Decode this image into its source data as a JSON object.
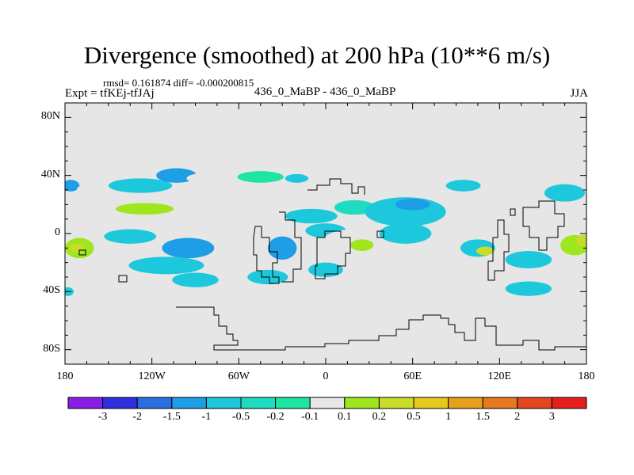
{
  "header": {
    "title": "Divergence (smoothed) at 200 hPa (10**6 m/s)",
    "stats": "rmsd= 0.161874  diff= -0.000200815",
    "experiment": "Expt = tfKEj-tfJAj",
    "case": "436_0_MaBP - 436_0_MaBP",
    "season": "JJA"
  },
  "map": {
    "lat_range": [
      -90,
      90
    ],
    "lon_range": [
      -180,
      180
    ],
    "y_ticks": [
      {
        "value": 80,
        "label": "80N"
      },
      {
        "value": 40,
        "label": "40N"
      },
      {
        "value": 0,
        "label": "0"
      },
      {
        "value": -40,
        "label": "40S"
      },
      {
        "value": -80,
        "label": "80S"
      }
    ],
    "x_ticks": [
      {
        "value": -180,
        "label": "180"
      },
      {
        "value": -120,
        "label": "120W"
      },
      {
        "value": -60,
        "label": "60W"
      },
      {
        "value": 0,
        "label": "0"
      },
      {
        "value": 60,
        "label": "60E"
      },
      {
        "value": 120,
        "label": "120E"
      },
      {
        "value": 180,
        "label": "180"
      }
    ],
    "background_color": "#e6e6e6",
    "blobs": [
      {
        "lon": -176,
        "lat": 33,
        "rx": 6,
        "ry": 4,
        "level": 3
      },
      {
        "lon": -158,
        "lat": 30,
        "rx": 14,
        "ry": 5,
        "level": 7
      },
      {
        "lon": -128,
        "lat": 33,
        "rx": 22,
        "ry": 5,
        "level": 4
      },
      {
        "lon": -103,
        "lat": 40,
        "rx": 14,
        "ry": 5,
        "level": 3
      },
      {
        "lon": -80,
        "lat": 38,
        "rx": 16,
        "ry": 4,
        "level": 7
      },
      {
        "lon": -45,
        "lat": 39,
        "rx": 16,
        "ry": 4,
        "level": 6
      },
      {
        "lon": -20,
        "lat": 38,
        "rx": 8,
        "ry": 3,
        "level": 4
      },
      {
        "lon": -165,
        "lat": 18,
        "rx": 14,
        "ry": 5,
        "level": 7
      },
      {
        "lon": -125,
        "lat": 17,
        "rx": 20,
        "ry": 4,
        "level": 8
      },
      {
        "lon": -85,
        "lat": 20,
        "rx": 16,
        "ry": 5,
        "level": 7
      },
      {
        "lon": -45,
        "lat": 14,
        "rx": 10,
        "ry": 4,
        "level": 7
      },
      {
        "lon": -10,
        "lat": 12,
        "rx": 18,
        "ry": 5,
        "level": 4
      },
      {
        "lon": 20,
        "lat": 18,
        "rx": 14,
        "ry": 5,
        "level": 5
      },
      {
        "lon": 55,
        "lat": 15,
        "rx": 28,
        "ry": 10,
        "level": 4
      },
      {
        "lon": 60,
        "lat": 20,
        "rx": 12,
        "ry": 4,
        "level": 3
      },
      {
        "lon": 92,
        "lat": 22,
        "rx": 10,
        "ry": 4,
        "level": 7
      },
      {
        "lon": 95,
        "lat": 33,
        "rx": 12,
        "ry": 4,
        "level": 4
      },
      {
        "lon": 150,
        "lat": 25,
        "rx": 12,
        "ry": 5,
        "level": 7
      },
      {
        "lon": 165,
        "lat": 28,
        "rx": 14,
        "ry": 6,
        "level": 4
      },
      {
        "lon": 176,
        "lat": 18,
        "rx": 6,
        "ry": 5,
        "level": 7
      },
      {
        "lon": -170,
        "lat": -10,
        "rx": 10,
        "ry": 7,
        "level": 8
      },
      {
        "lon": -172,
        "lat": -10,
        "rx": 5,
        "ry": 3,
        "level": 9
      },
      {
        "lon": -135,
        "lat": -2,
        "rx": 18,
        "ry": 5,
        "level": 4
      },
      {
        "lon": -140,
        "lat": -12,
        "rx": 16,
        "ry": 5,
        "level": 7
      },
      {
        "lon": -95,
        "lat": -10,
        "rx": 18,
        "ry": 7,
        "level": 3
      },
      {
        "lon": -110,
        "lat": -22,
        "rx": 26,
        "ry": 6,
        "level": 4
      },
      {
        "lon": -60,
        "lat": 0,
        "rx": 12,
        "ry": 5,
        "level": 7
      },
      {
        "lon": -30,
        "lat": -10,
        "rx": 10,
        "ry": 8,
        "level": 3
      },
      {
        "lon": 0,
        "lat": 2,
        "rx": 14,
        "ry": 5,
        "level": 4
      },
      {
        "lon": 20,
        "lat": -5,
        "rx": 22,
        "ry": 8,
        "level": 7
      },
      {
        "lon": 25,
        "lat": -8,
        "rx": 8,
        "ry": 4,
        "level": 8
      },
      {
        "lon": 55,
        "lat": 0,
        "rx": 18,
        "ry": 7,
        "level": 4
      },
      {
        "lon": 60,
        "lat": -22,
        "rx": 24,
        "ry": 7,
        "level": 7
      },
      {
        "lon": 95,
        "lat": -2,
        "rx": 16,
        "ry": 5,
        "level": 7
      },
      {
        "lon": 105,
        "lat": -10,
        "rx": 12,
        "ry": 6,
        "level": 4
      },
      {
        "lon": 110,
        "lat": -12,
        "rx": 6,
        "ry": 3,
        "level": 9
      },
      {
        "lon": 140,
        "lat": -5,
        "rx": 16,
        "ry": 6,
        "level": 7
      },
      {
        "lon": 140,
        "lat": -18,
        "rx": 16,
        "ry": 6,
        "level": 4
      },
      {
        "lon": 172,
        "lat": -8,
        "rx": 10,
        "ry": 7,
        "level": 8
      },
      {
        "lon": 178,
        "lat": -5,
        "rx": 5,
        "ry": 4,
        "level": 9
      },
      {
        "lon": -160,
        "lat": -30,
        "rx": 16,
        "ry": 5,
        "level": 7
      },
      {
        "lon": -130,
        "lat": -38,
        "rx": 14,
        "ry": 5,
        "level": 7
      },
      {
        "lon": -90,
        "lat": -32,
        "rx": 16,
        "ry": 5,
        "level": 4
      },
      {
        "lon": -40,
        "lat": -30,
        "rx": 14,
        "ry": 5,
        "level": 4
      },
      {
        "lon": 0,
        "lat": -25,
        "rx": 12,
        "ry": 5,
        "level": 4
      },
      {
        "lon": 20,
        "lat": -32,
        "rx": 14,
        "ry": 5,
        "level": 7
      },
      {
        "lon": 55,
        "lat": -38,
        "rx": 14,
        "ry": 5,
        "level": 7
      },
      {
        "lon": 140,
        "lat": -38,
        "rx": 16,
        "ry": 5,
        "level": 4
      },
      {
        "lon": -178,
        "lat": -40,
        "rx": 4,
        "ry": 3,
        "level": 4
      }
    ]
  },
  "colorbar": {
    "colors": [
      "#8a1ee6",
      "#3030e0",
      "#2a6ee0",
      "#1e9ee6",
      "#1ec8dc",
      "#1edcc0",
      "#1ee6a0",
      "#e6e6e6",
      "#a0e61e",
      "#c8dc28",
      "#e6c81e",
      "#e6a01e",
      "#e6781e",
      "#e6461e",
      "#e61e1e"
    ],
    "labels": [
      "-3",
      "-2",
      "-1.5",
      "-1",
      "-0.5",
      "-0.2",
      "-0.1",
      "0.1",
      "0.2",
      "0.5",
      "1",
      "1.5",
      "2",
      "3"
    ]
  }
}
